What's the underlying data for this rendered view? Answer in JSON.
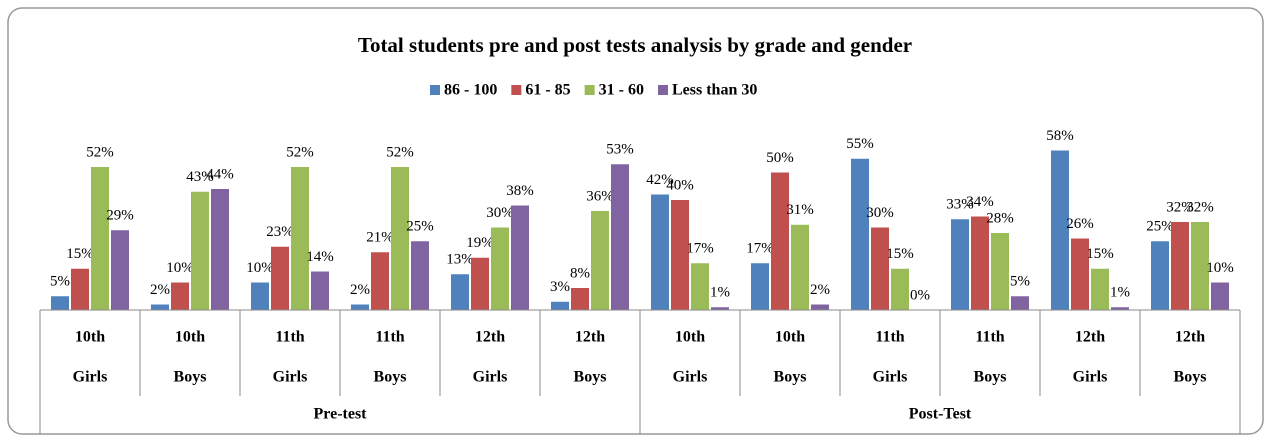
{
  "chart_data": {
    "type": "bar",
    "title": "Total students pre and post tests analysis by grade and gender",
    "groups": [
      {
        "name": "Pre-test",
        "categories": [
          [
            "10th",
            "Girls"
          ],
          [
            "10th",
            "Boys"
          ],
          [
            "11th",
            "Girls"
          ],
          [
            "11th",
            "Boys"
          ],
          [
            "12th",
            "Girls"
          ],
          [
            "12th",
            "Boys"
          ]
        ]
      },
      {
        "name": "Post-Test",
        "categories": [
          [
            "10th",
            "Girls"
          ],
          [
            "10th",
            "Boys"
          ],
          [
            "11th",
            "Girls"
          ],
          [
            "11th",
            "Boys"
          ],
          [
            "12th",
            "Girls"
          ],
          [
            "12th",
            "Boys"
          ]
        ]
      }
    ],
    "legend": "top",
    "series": [
      {
        "name": "86 - 100",
        "color": "#4f81bd",
        "values": [
          5,
          2,
          10,
          2,
          13,
          3,
          42,
          17,
          55,
          33,
          58,
          25
        ],
        "value_labels": [
          "5%",
          "2%",
          "10%",
          "2%",
          "13%",
          "3%",
          "42%",
          "17%",
          "55%",
          "33%",
          "58%",
          "25%"
        ]
      },
      {
        "name": "61 - 85",
        "color": "#c0504d",
        "values": [
          15,
          10,
          23,
          21,
          19,
          8,
          40,
          50,
          30,
          34,
          26,
          32
        ],
        "value_labels": [
          "15%",
          "10%",
          "23%",
          "21%",
          "19%",
          "8%",
          "40%",
          "50%",
          "30%",
          "34%",
          "26%",
          "32%"
        ]
      },
      {
        "name": "31 - 60",
        "color": "#9bbb59",
        "values": [
          52,
          43,
          52,
          52,
          30,
          36,
          17,
          31,
          15,
          28,
          15,
          32
        ],
        "value_labels": [
          "52%",
          "43%",
          "52%",
          "52%",
          "30%",
          "36%",
          "17%",
          "31%",
          "15%",
          "28%",
          "15%",
          "32%"
        ]
      },
      {
        "name": "Less than 30",
        "color": "#8064a2",
        "values": [
          29,
          44,
          14,
          25,
          38,
          53,
          1,
          2,
          0,
          5,
          1,
          10
        ],
        "value_labels": [
          "29%",
          "44%",
          "14%",
          "25%",
          "38%",
          "53%",
          "1%",
          "2%",
          "0%",
          "5%",
          "1%",
          "10%"
        ]
      }
    ]
  }
}
